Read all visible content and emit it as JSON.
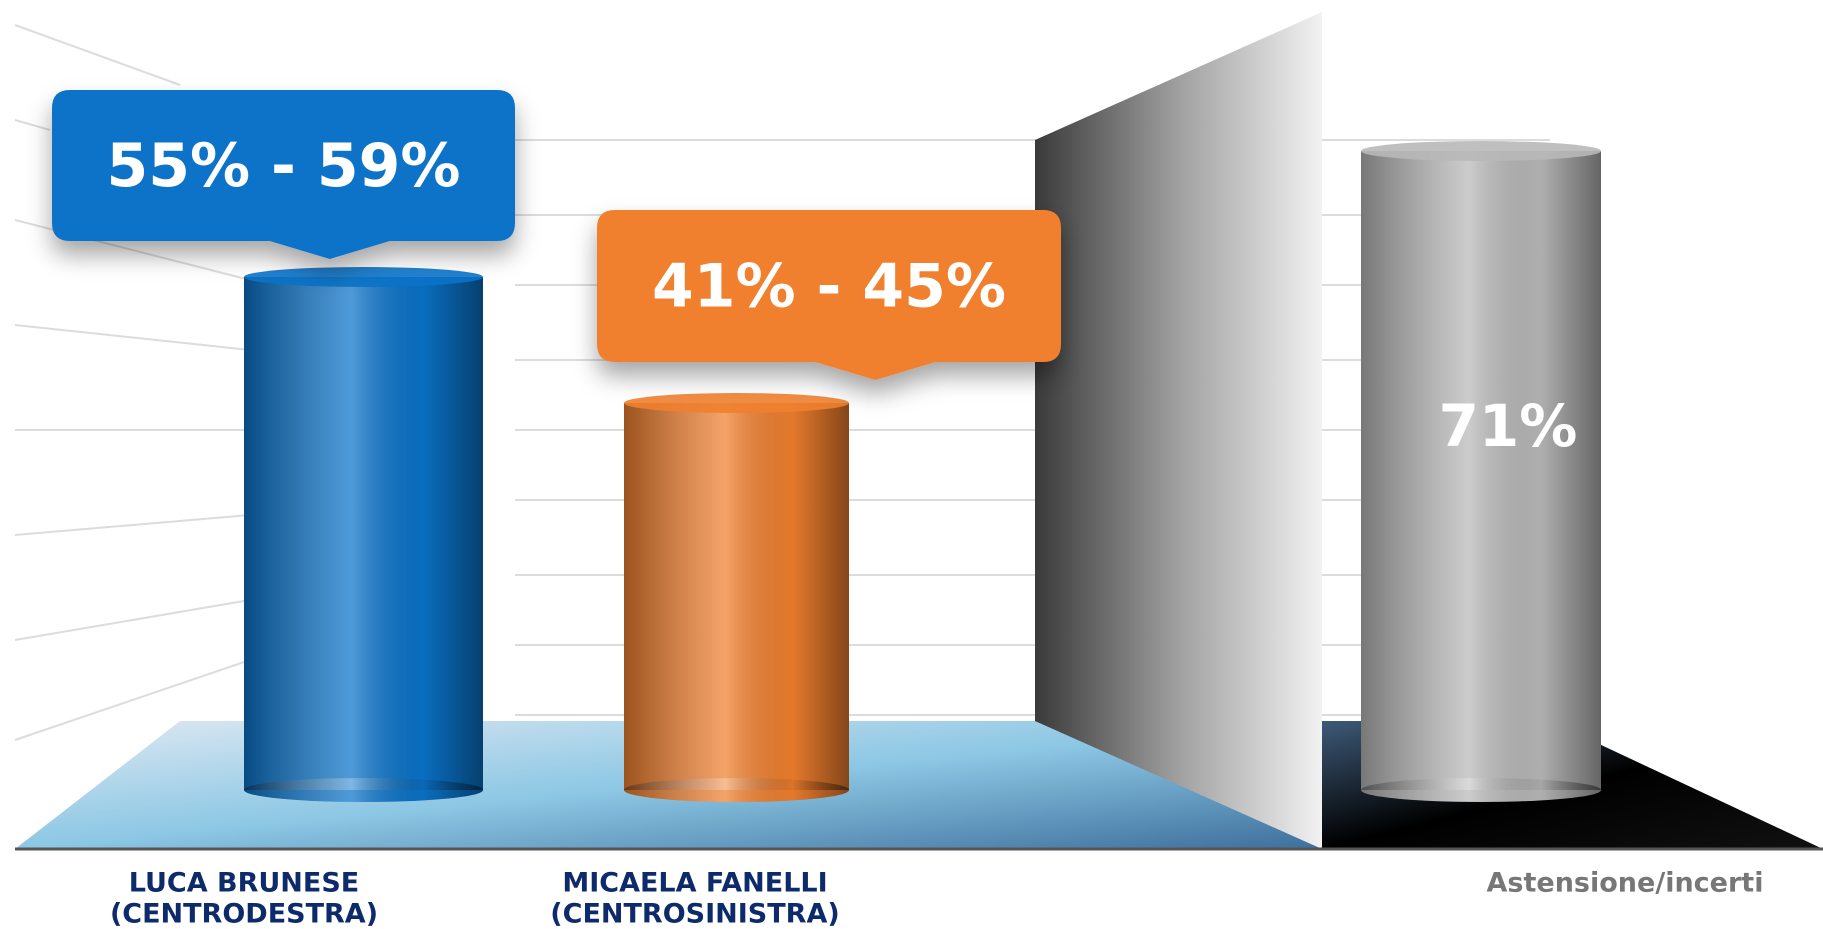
{
  "chart_data": {
    "type": "bar",
    "categories": [
      [
        "LUCA BRUNESE",
        "(CENTRODESTRA)"
      ],
      [
        "MICAELA FANELLI",
        "(CENTROSINISTRA)"
      ],
      [
        "Astensione/incerti"
      ]
    ],
    "category_colors": [
      "#0d2a6b",
      "#0d2a6b",
      "#777777"
    ],
    "values": [
      [
        55,
        59
      ],
      [
        41,
        45
      ],
      71
    ],
    "value_labels": [
      "55% - 59%",
      "41% - 45%",
      "71%"
    ],
    "colors": [
      "#0a73c9",
      "#f07f2e",
      "#b8b8b8"
    ]
  }
}
